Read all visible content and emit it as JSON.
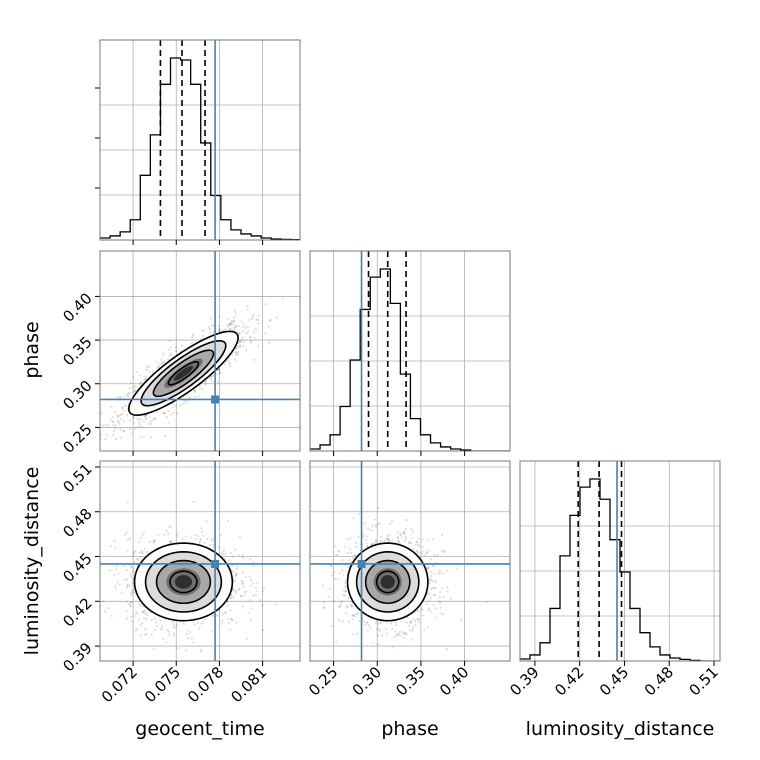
{
  "chart_data": {
    "type": "corner",
    "parameters": [
      "geocent_time",
      "phase",
      "luminosity_distance"
    ],
    "axis_labels": {
      "geocent_time": "geocent_time",
      "phase": "phase",
      "luminosity_distance": "luminosity_distance"
    },
    "ranges": {
      "geocent_time": [
        0.0697,
        0.0836
      ],
      "phase": [
        0.223,
        0.452
      ],
      "luminosity_distance": [
        0.38,
        0.514
      ]
    },
    "ticks": {
      "geocent_time": [
        "0.072",
        "0.075",
        "0.078",
        "0.081"
      ],
      "phase": [
        "0.25",
        "0.30",
        "0.35",
        "0.40"
      ],
      "luminosity_distance": [
        "0.39",
        "0.42",
        "0.45",
        "0.48",
        "0.51"
      ]
    },
    "truth": {
      "geocent_time": 0.0777,
      "phase": 0.282,
      "luminosity_distance": 0.445,
      "color": "#4682b4"
    },
    "quantiles": {
      "geocent_time": [
        0.0739,
        0.0754,
        0.077
      ],
      "phase": [
        0.29,
        0.312,
        0.333
      ],
      "luminosity_distance": [
        0.419,
        0.433,
        0.448
      ]
    },
    "histograms": {
      "geocent_time": {
        "edges": [
          0.0697,
          0.0704,
          0.0711,
          0.0718,
          0.0725,
          0.0732,
          0.0739,
          0.0746,
          0.0753,
          0.076,
          0.0767,
          0.0774,
          0.0781,
          0.0788,
          0.0795,
          0.0802,
          0.0809,
          0.0816,
          0.0823,
          0.083,
          0.0837
        ],
        "counts": [
          1,
          2,
          4,
          10,
          32,
          52,
          77,
          90,
          89,
          77,
          48,
          22,
          10,
          5,
          3,
          2,
          1,
          0.5,
          0.3,
          0.2
        ]
      },
      "phase": {
        "edges": [
          0.223,
          0.2345,
          0.246,
          0.2575,
          0.269,
          0.2805,
          0.292,
          0.3035,
          0.315,
          0.3265,
          0.338,
          0.3495,
          0.361,
          0.3725,
          0.384,
          0.3955,
          0.407,
          0.4185,
          0.43,
          0.4415,
          0.453
        ],
        "counts": [
          1,
          3,
          8,
          22,
          45,
          70,
          86,
          90,
          73,
          38,
          16,
          8,
          4,
          2,
          1,
          0.5,
          0,
          0,
          0,
          0
        ]
      },
      "luminosity_distance": {
        "edges": [
          0.38,
          0.3867,
          0.3934,
          0.4001,
          0.4068,
          0.4135,
          0.4202,
          0.4269,
          0.4336,
          0.4403,
          0.447,
          0.4537,
          0.4604,
          0.4671,
          0.4738,
          0.4805,
          0.4872,
          0.4939,
          0.5006,
          0.5073,
          0.514
        ],
        "counts": [
          1,
          3,
          9,
          26,
          52,
          72,
          86,
          90,
          80,
          60,
          44,
          26,
          14,
          7,
          3,
          1.5,
          0.8,
          0.3,
          0,
          0
        ]
      }
    },
    "density_2d": {
      "phase_vs_geocent_time": {
        "mean": [
          0.0755,
          0.312
        ],
        "sd": [
          0.0019,
          0.024
        ],
        "corr": 0.85
      },
      "luminosity_distance_vs_geocent_time": {
        "mean": [
          0.0755,
          0.433
        ],
        "sd": [
          0.0017,
          0.013
        ],
        "corr": 0.0
      },
      "luminosity_distance_vs_phase": {
        "mean": [
          0.312,
          0.433
        ],
        "sd": [
          0.023,
          0.013
        ],
        "corr": 0.0
      }
    },
    "grid": true
  }
}
